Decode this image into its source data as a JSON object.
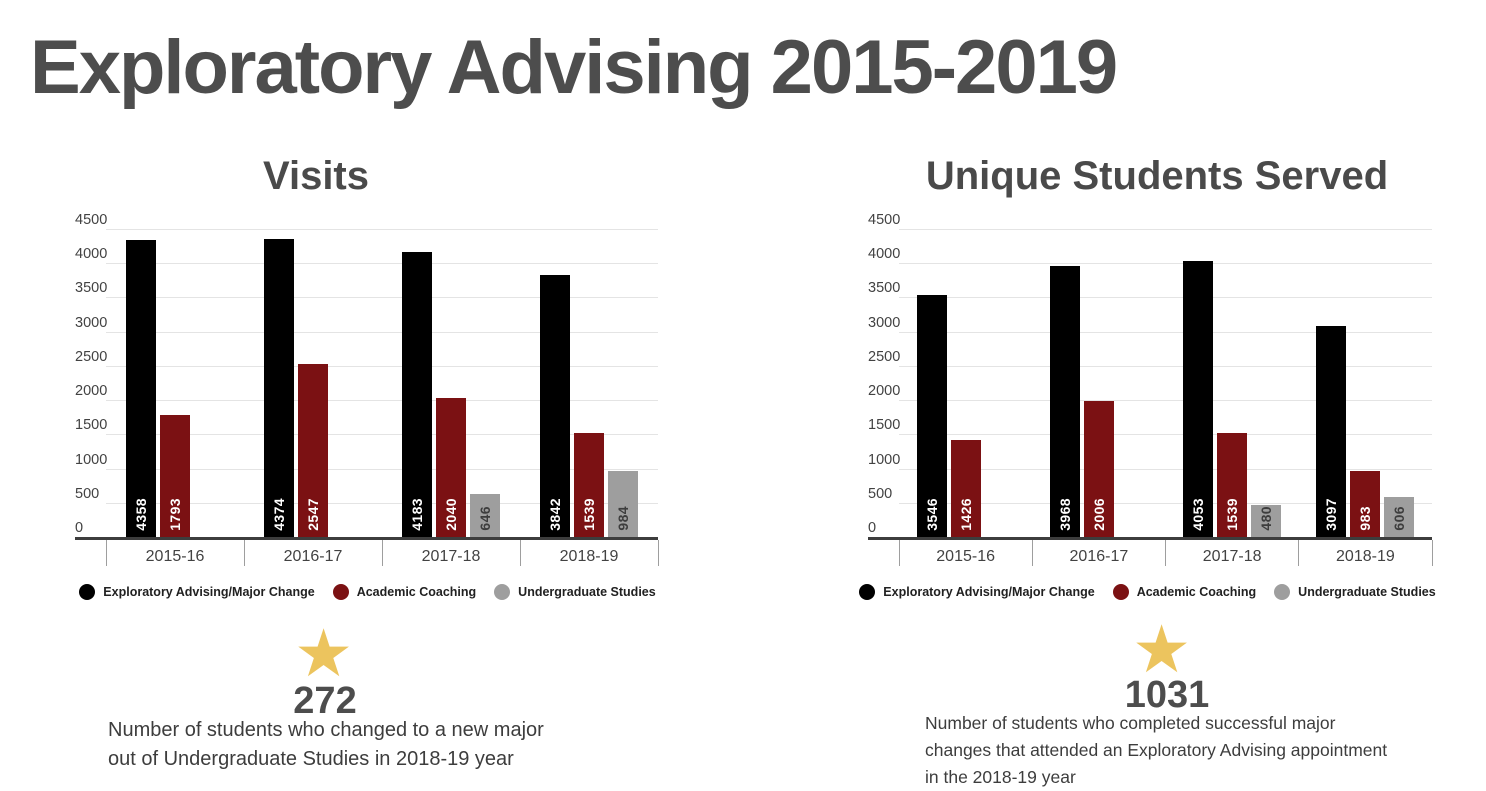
{
  "page_title": "Exploratory Advising 2015-2019",
  "colors": {
    "series_black": "#000000",
    "series_dark_red": "#7b1113",
    "series_gray": "#9e9e9e",
    "star": "#ecc45e",
    "heading_text": "#4d4d4d"
  },
  "chart_data": [
    {
      "type": "bar",
      "title": "Visits",
      "categories": [
        "2015-16",
        "2016-17",
        "2017-18",
        "2018-19"
      ],
      "series": [
        {
          "name": "Exploratory Advising/Major Change",
          "color": "#000000",
          "value_label_color": "#ffffff",
          "values": [
            4358,
            4374,
            4183,
            3842
          ]
        },
        {
          "name": "Academic Coaching",
          "color": "#7b1113",
          "value_label_color": "#ffffff",
          "values": [
            1793,
            2547,
            2040,
            1539
          ]
        },
        {
          "name": "Undergraduate Studies",
          "color": "#9e9e9e",
          "value_label_color": "#3d3d3d",
          "values": [
            null,
            null,
            646,
            984
          ]
        }
      ],
      "ylim": [
        0,
        4500
      ],
      "ytick_step": 500,
      "grid": true,
      "legend_position": "bottom"
    },
    {
      "type": "bar",
      "title": "Unique Students Served",
      "categories": [
        "2015-16",
        "2016-17",
        "2017-18",
        "2018-19"
      ],
      "series": [
        {
          "name": "Exploratory Advising/Major Change",
          "color": "#000000",
          "value_label_color": "#ffffff",
          "values": [
            3546,
            3968,
            4053,
            3097
          ]
        },
        {
          "name": "Academic Coaching",
          "color": "#7b1113",
          "value_label_color": "#ffffff",
          "values": [
            1426,
            2006,
            1539,
            983
          ]
        },
        {
          "name": "Undergraduate Studies",
          "color": "#9e9e9e",
          "value_label_color": "#3d3d3d",
          "values": [
            null,
            null,
            480,
            606
          ]
        }
      ],
      "ylim": [
        0,
        4500
      ],
      "ytick_step": 500,
      "grid": true,
      "legend_position": "bottom"
    }
  ],
  "callouts": [
    {
      "icon": "star",
      "value": "272",
      "description_lines": [
        "Number of students who changed to a new major",
        "out of Undergraduate Studies in 2018-19 year"
      ]
    },
    {
      "icon": "star",
      "value": "1031",
      "description_lines": [
        "Number of students who completed successful major",
        "changes that attended an Exploratory Advising appointment",
        "in the 2018-19 year"
      ]
    }
  ]
}
